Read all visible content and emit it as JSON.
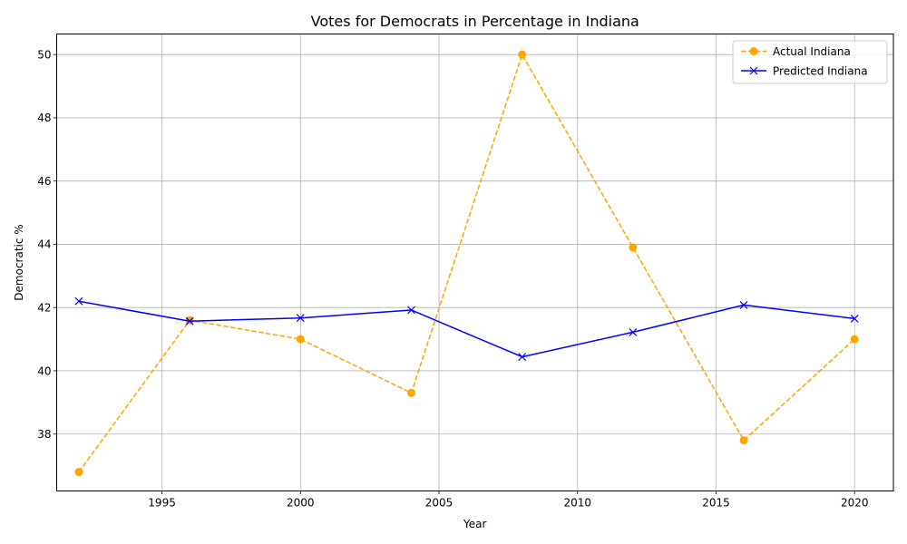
{
  "chart_data": {
    "type": "line",
    "title": "Votes for Democrats in Percentage in Indiana",
    "xlabel": "Year",
    "ylabel": "Democratic %",
    "x": [
      1992,
      1996,
      2000,
      2004,
      2008,
      2012,
      2016,
      2020
    ],
    "xlim": [
      1991.2,
      2021.4
    ],
    "ylim": [
      36.2,
      50.65
    ],
    "xticks": [
      1995,
      2000,
      2005,
      2010,
      2015,
      2020
    ],
    "yticks": [
      38,
      40,
      42,
      44,
      46,
      48,
      50
    ],
    "grid": true,
    "legend_position": "top-right",
    "series": [
      {
        "name": "Actual Indiana",
        "values": [
          36.8,
          41.6,
          41.0,
          39.3,
          50.0,
          43.9,
          37.8,
          41.0
        ],
        "color": "#ffa500",
        "line_style": "dashed",
        "marker": "circle"
      },
      {
        "name": "Predicted Indiana",
        "values": [
          42.2,
          41.57,
          41.67,
          41.92,
          40.44,
          41.22,
          42.08,
          41.65
        ],
        "color": "#0000ff",
        "line_style": "solid",
        "marker": "x"
      }
    ]
  }
}
